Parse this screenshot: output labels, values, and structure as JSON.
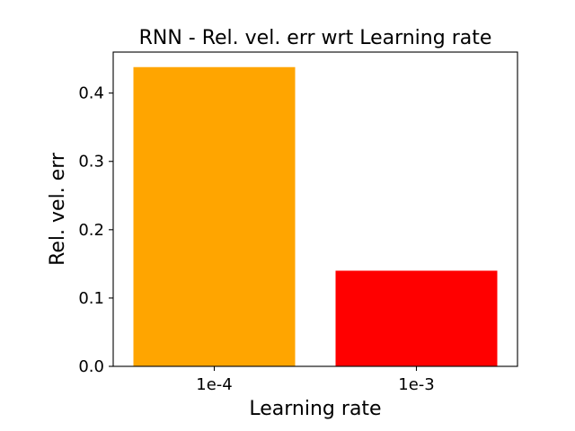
{
  "chart_data": {
    "type": "bar",
    "title": "RNN - Rel. vel. err wrt Learning rate",
    "xlabel": "Learning rate",
    "ylabel": "Rel. vel. err",
    "categories": [
      "1e-4",
      "1e-3"
    ],
    "values": [
      0.438,
      0.14
    ],
    "colors": [
      "#ffa500",
      "#ff0000"
    ],
    "ylim": [
      0,
      0.46
    ],
    "yticks": [
      0.0,
      0.1,
      0.2,
      0.3,
      0.4
    ],
    "ytick_labels": [
      "0.0",
      "0.1",
      "0.2",
      "0.3",
      "0.4"
    ],
    "grid": false,
    "legend": "none"
  }
}
